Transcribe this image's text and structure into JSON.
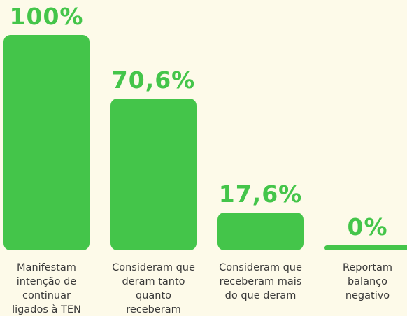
{
  "chart_data": {
    "type": "bar",
    "categories": [
      "Manifestam intenção de continuar ligados à TEN",
      "Consideram que deram tanto quanto receberam",
      "Consideram que receberam mais do que deram",
      "Reportam balanço negativo"
    ],
    "values": [
      100,
      70.6,
      17.6,
      0
    ],
    "value_labels": [
      "100%",
      "70,6%",
      "17,6%",
      "0%"
    ],
    "color": "#44c54a"
  }
}
